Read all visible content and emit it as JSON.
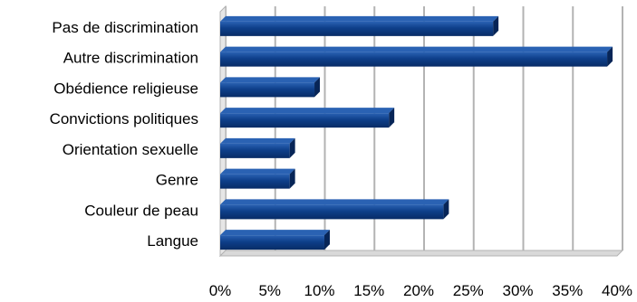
{
  "chart_data": {
    "type": "bar",
    "orientation": "horizontal",
    "style": "3d",
    "categories": [
      "Pas de discrimination",
      "Autre discrimination",
      "Obédience religieuse",
      "Convictions politiques",
      "Orientation sexuelle",
      "Genre",
      "Couleur de peau",
      "Langue"
    ],
    "values": [
      27.5,
      39,
      9.5,
      17,
      7,
      7,
      22.5,
      10.5
    ],
    "xlim": [
      0,
      40
    ],
    "xticks": [
      0,
      5,
      10,
      15,
      20,
      25,
      30,
      35,
      40
    ],
    "xtick_labels": [
      "0%",
      "5%",
      "10%",
      "15%",
      "20%",
      "25%",
      "30%",
      "35%",
      "40%"
    ],
    "grid": true,
    "legend": "none",
    "title": "",
    "xlabel": "",
    "ylabel": "",
    "colors": {
      "bar": "#0e3f8a",
      "bar_light": "#2a62b3",
      "bar_dark": "#072557",
      "grid": "#b3b3b3",
      "floor": "#d9d9d9"
    }
  }
}
